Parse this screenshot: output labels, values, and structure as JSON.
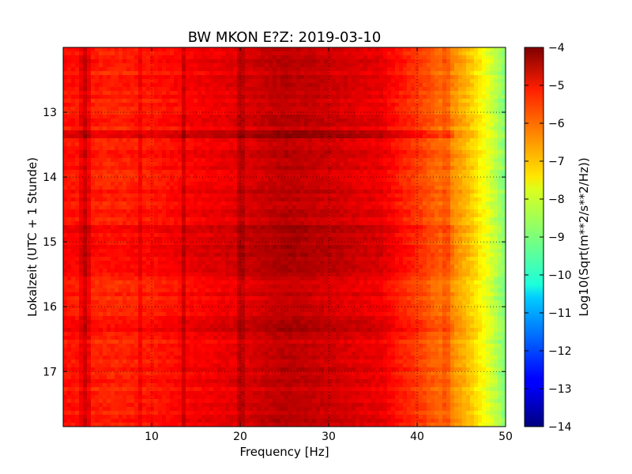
{
  "chart_data": {
    "type": "heatmap",
    "title": "BW MKON E?Z: 2019-03-10",
    "xlabel": "Frequency [Hz]",
    "ylabel": "Lokalzeit (UTC + 1 Stunde)",
    "xlim": [
      0,
      50
    ],
    "ylim": [
      12.0,
      17.85
    ],
    "y_inverted": true,
    "grid": true,
    "colormap": "jet",
    "x_ticks": [
      10,
      20,
      30,
      40,
      50
    ],
    "x_tick_labels": [
      "10",
      "20",
      "30",
      "40",
      "50"
    ],
    "y_ticks": [
      13,
      14,
      15,
      16,
      17
    ],
    "y_tick_labels": [
      "13",
      "14",
      "15",
      "16",
      "17"
    ],
    "colorbar": {
      "label": "Log10(Sqrt(m**2/s**2/Hz))",
      "range": [
        -14,
        -4
      ],
      "ticks": [
        -4,
        -5,
        -6,
        -7,
        -8,
        -9,
        -10,
        -11,
        -12,
        -13,
        -14
      ],
      "tick_labels": [
        "−4",
        "−5",
        "−6",
        "−7",
        "−8",
        "−9",
        "−10",
        "−11",
        "−12",
        "−13",
        "−14"
      ]
    },
    "frequency_profile": {
      "freq": [
        0,
        5,
        10,
        15,
        20,
        22,
        25,
        28,
        32,
        36,
        38,
        40,
        42,
        44,
        46,
        48,
        50
      ],
      "value": [
        -5.4,
        -5.6,
        -5.5,
        -5.2,
        -5.0,
        -4.8,
        -4.6,
        -4.7,
        -4.9,
        -5.1,
        -5.5,
        -5.8,
        -6.2,
        -6.6,
        -7.2,
        -8.0,
        -9.0
      ]
    },
    "line_features": [
      {
        "freq": 2.2,
        "delta": 0.35
      },
      {
        "freq": 2.6,
        "delta": 0.35
      },
      {
        "freq": 8.6,
        "delta": 0.3
      },
      {
        "freq": 13.6,
        "delta": 0.45
      },
      {
        "freq": 20.1,
        "delta": 0.35
      },
      {
        "freq": 43.2,
        "delta": 0.3
      }
    ],
    "time_events": [
      {
        "t0": 13.25,
        "t1": 13.4,
        "delta": 0.45
      },
      {
        "t0": 14.75,
        "t1": 15.45,
        "delta": 0.25
      },
      {
        "t0": 16.2,
        "t1": 16.4,
        "delta": 0.2
      }
    ]
  }
}
